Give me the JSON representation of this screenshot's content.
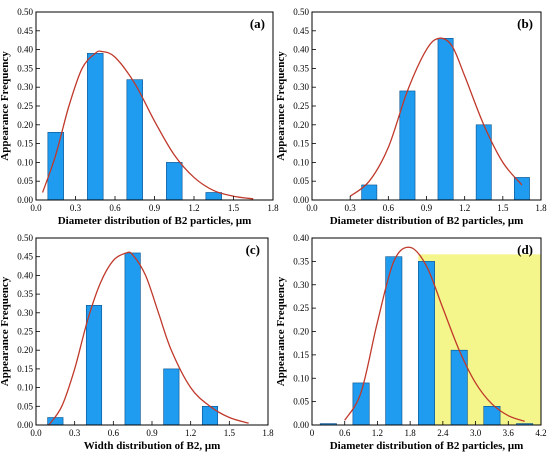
{
  "chart_data": [
    {
      "type": "bar",
      "panel_label": "(a)",
      "xlabel": "Diameter distribution of B2 particles, μm",
      "ylabel": "Appearance Frequency",
      "xlim": [
        0,
        1.8
      ],
      "ylim": [
        0,
        0.5
      ],
      "xticks": [
        "0.0",
        "0.3",
        "0.6",
        "0.9",
        "1.2",
        "1.5",
        "1.8"
      ],
      "yticks": [
        "0.00",
        "0.05",
        "0.10",
        "0.15",
        "0.20",
        "0.25",
        "0.30",
        "0.35",
        "0.40",
        "0.45",
        "0.50"
      ],
      "bar_centers": [
        0.15,
        0.45,
        0.75,
        1.05,
        1.35
      ],
      "values": [
        0.18,
        0.39,
        0.32,
        0.1,
        0.02
      ],
      "bar_width": 0.12,
      "fit_curve": {
        "type": "lognormal-fit",
        "x": [
          0.05,
          0.15,
          0.25,
          0.35,
          0.45,
          0.5,
          0.6,
          0.75,
          0.9,
          1.05,
          1.2,
          1.35,
          1.5,
          1.65
        ],
        "y": [
          0.02,
          0.12,
          0.25,
          0.35,
          0.39,
          0.395,
          0.38,
          0.31,
          0.21,
          0.12,
          0.06,
          0.025,
          0.01,
          0.003
        ]
      },
      "bar_color": "#1f9cf0",
      "curve_color": "#c0392b",
      "grid": false
    },
    {
      "type": "bar",
      "panel_label": "(b)",
      "xlabel": "Diameter distribution of B2 particles, μm",
      "ylabel": "Appearance Frequency",
      "xlim": [
        0,
        1.8
      ],
      "ylim": [
        0,
        0.5
      ],
      "xticks": [
        "0.0",
        "0.3",
        "0.6",
        "0.9",
        "1.2",
        "1.5",
        "1.8"
      ],
      "yticks": [
        "0.00",
        "0.05",
        "0.10",
        "0.15",
        "0.20",
        "0.25",
        "0.30",
        "0.35",
        "0.40",
        "0.45",
        "0.50"
      ],
      "bar_centers": [
        0.45,
        0.75,
        1.05,
        1.35,
        1.65
      ],
      "values": [
        0.04,
        0.29,
        0.43,
        0.2,
        0.06
      ],
      "bar_width": 0.12,
      "fit_curve": {
        "type": "gaussian-fit",
        "x": [
          0.3,
          0.45,
          0.6,
          0.75,
          0.9,
          1.0,
          1.1,
          1.2,
          1.35,
          1.5,
          1.65
        ],
        "y": [
          0.01,
          0.05,
          0.14,
          0.29,
          0.4,
          0.43,
          0.41,
          0.33,
          0.2,
          0.1,
          0.04
        ]
      },
      "bar_color": "#1f9cf0",
      "curve_color": "#c0392b",
      "grid": false
    },
    {
      "type": "bar",
      "panel_label": "(c)",
      "xlabel": "Width distribution of B2, μm",
      "ylabel": "Appearance Frequency",
      "xlim": [
        0,
        1.8
      ],
      "ylim": [
        0,
        0.5
      ],
      "xticks": [
        "0.0",
        "0.3",
        "0.6",
        "0.9",
        "1.2",
        "1.5",
        "1.8"
      ],
      "yticks": [
        "0.00",
        "0.05",
        "0.10",
        "0.15",
        "0.20",
        "0.25",
        "0.30",
        "0.35",
        "0.40",
        "0.45",
        "0.50"
      ],
      "bar_centers": [
        0.15,
        0.45,
        0.75,
        1.05,
        1.35
      ],
      "values": [
        0.02,
        0.32,
        0.46,
        0.15,
        0.05
      ],
      "bar_width": 0.12,
      "fit_curve": {
        "type": "lognormal-fit",
        "x": [
          0.1,
          0.2,
          0.3,
          0.4,
          0.5,
          0.6,
          0.7,
          0.75,
          0.85,
          0.95,
          1.05,
          1.2,
          1.35,
          1.5,
          1.65
        ],
        "y": [
          0.0,
          0.05,
          0.15,
          0.28,
          0.38,
          0.44,
          0.46,
          0.455,
          0.4,
          0.3,
          0.2,
          0.1,
          0.05,
          0.02,
          0.005
        ]
      },
      "bar_color": "#1f9cf0",
      "curve_color": "#c0392b",
      "grid": false
    },
    {
      "type": "bar",
      "panel_label": "(d)",
      "xlabel": "Diameter distribution of B2 particles, μm",
      "ylabel": "Appearance Frequency",
      "xlim": [
        0,
        4.2
      ],
      "ylim": [
        0,
        0.4
      ],
      "xticks": [
        "0",
        "0.6",
        "1.2",
        "1.8",
        "2.4",
        "3.0",
        "3.6",
        "4.2"
      ],
      "yticks": [
        "0.00",
        "0.05",
        "0.10",
        "0.15",
        "0.20",
        "0.25",
        "0.30",
        "0.35",
        "0.40"
      ],
      "bar_centers": [
        0.3,
        0.9,
        1.5,
        2.1,
        2.7,
        3.3,
        3.9
      ],
      "values": [
        0.003,
        0.09,
        0.36,
        0.35,
        0.16,
        0.04,
        0.003
      ],
      "bar_width": 0.3,
      "fit_curve": {
        "type": "lognormal-fit",
        "x": [
          0.6,
          0.9,
          1.2,
          1.5,
          1.8,
          2.1,
          2.4,
          2.7,
          3.0,
          3.3,
          3.6,
          3.9
        ],
        "y": [
          0.01,
          0.07,
          0.22,
          0.35,
          0.38,
          0.34,
          0.25,
          0.16,
          0.09,
          0.045,
          0.02,
          0.008
        ]
      },
      "highlight_region": {
        "x": [
          1.95,
          4.2
        ],
        "y": [
          0,
          0.365
        ],
        "color": "#f4f58a"
      },
      "bar_color": "#1f9cf0",
      "curve_color": "#c0392b",
      "grid": false
    }
  ]
}
